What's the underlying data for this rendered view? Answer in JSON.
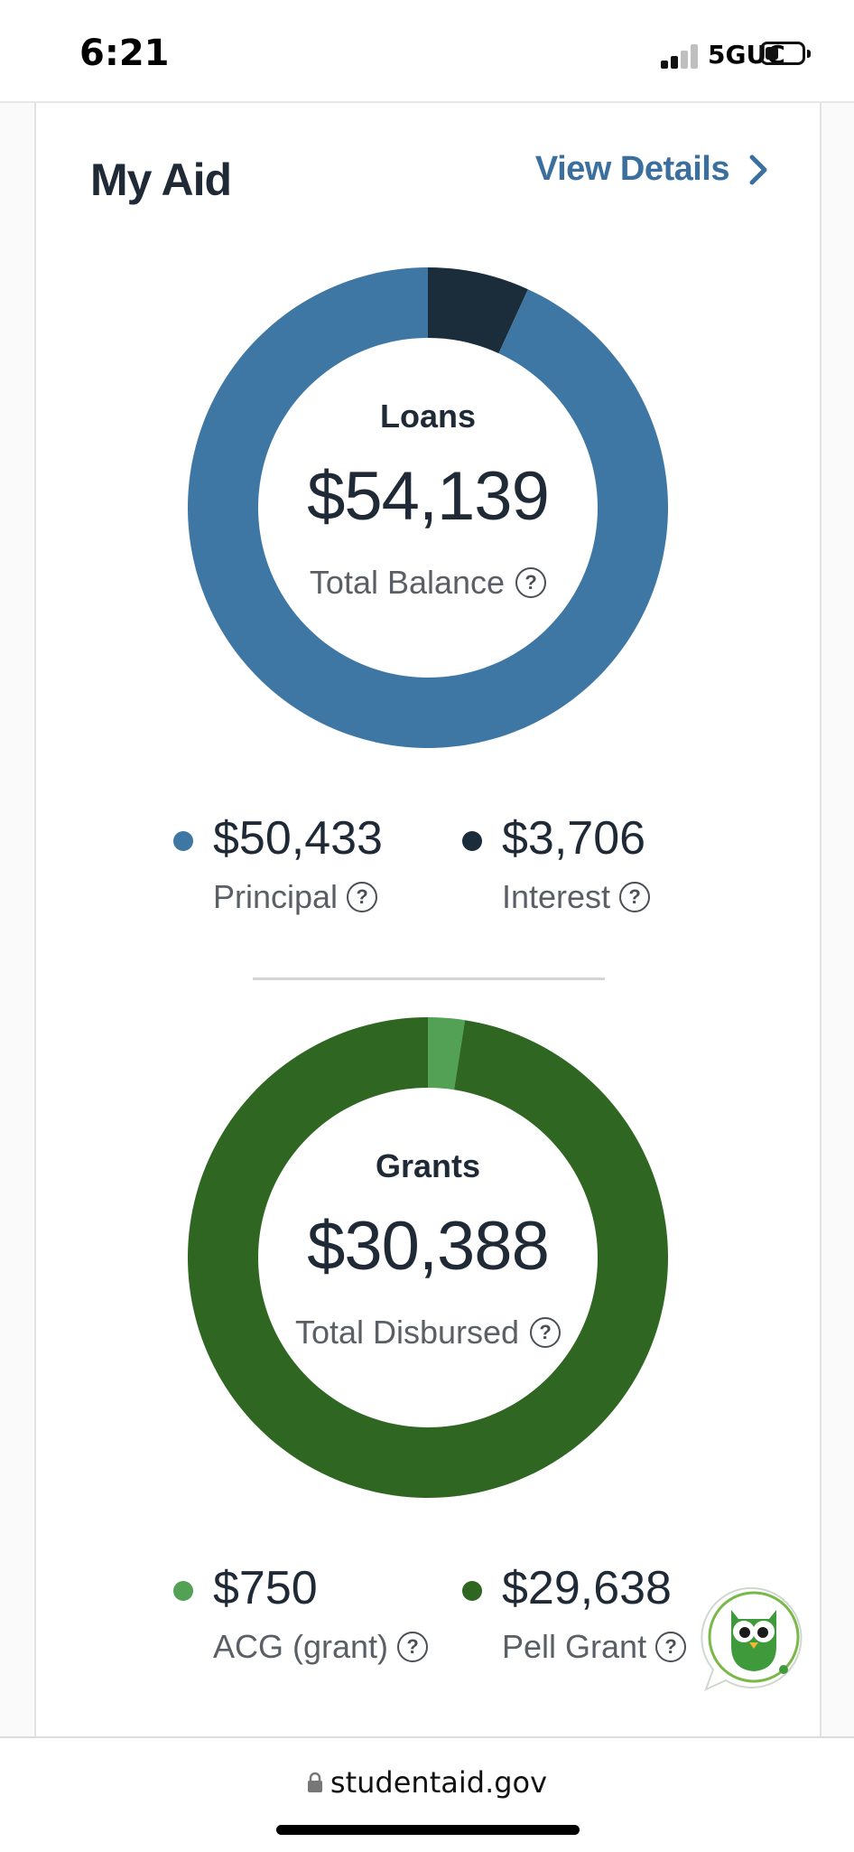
{
  "status_bar": {
    "time": "6:21",
    "network": "5GUC"
  },
  "card": {
    "title": "My Aid",
    "view_details": "View Details"
  },
  "loans": {
    "title": "Loans",
    "total": "$54,139",
    "subtitle": "Total Balance",
    "help_glyph": "?",
    "legend": [
      {
        "amount": "$50,433",
        "label": "Principal",
        "color": "#3f77a4"
      },
      {
        "amount": "$3,706",
        "label": "Interest",
        "color": "#1b2c3a"
      }
    ]
  },
  "grants": {
    "title": "Grants",
    "total": "$30,388",
    "subtitle": "Total Disbursed",
    "help_glyph": "?",
    "legend": [
      {
        "amount": "$750",
        "label": "ACG (grant)",
        "color": "#52a155"
      },
      {
        "amount": "$29,638",
        "label": "Pell Grant",
        "color": "#2e6622"
      }
    ]
  },
  "chart_data": [
    {
      "type": "pie",
      "title": "Loans",
      "categories": [
        "Interest",
        "Principal"
      ],
      "values": [
        3706,
        50433
      ],
      "colors": [
        "#1b2c3a",
        "#3f77a4"
      ]
    },
    {
      "type": "pie",
      "title": "Grants",
      "categories": [
        "ACG (grant)",
        "Pell Grant"
      ],
      "values": [
        750,
        29638
      ],
      "colors": [
        "#52a155",
        "#2e6622"
      ]
    }
  ],
  "address_bar": {
    "url": "studentaid.gov"
  },
  "icons": {
    "lock": "lock-icon",
    "chevron": "chevron-right-icon",
    "help": "help-icon",
    "owl": "owl-chat-icon"
  }
}
